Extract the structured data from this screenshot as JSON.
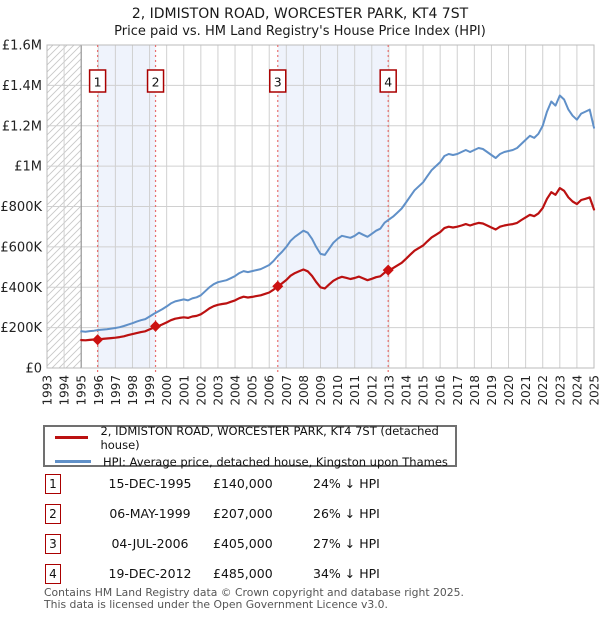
{
  "title": "2, IDMISTON ROAD, WORCESTER PARK, KT4 7ST",
  "subtitle": "Price paid vs. HM Land Registry's House Price Index (HPI)",
  "colors": {
    "property_line": "#bb1111",
    "hpi_line": "#6090c8",
    "sale_marker": "#cc1111",
    "dashed_line": "#e87070",
    "shade": "#eff3fc",
    "grid": "#d0d0d0",
    "hatch": "#c8c8c8",
    "box_border": "#aa0000",
    "axis_text": "#222222"
  },
  "chart_data": {
    "type": "line",
    "xlim": [
      1993,
      2025
    ],
    "ylim": [
      0,
      1600000
    ],
    "xticks": [
      1993,
      1994,
      1995,
      1996,
      1997,
      1998,
      1999,
      2000,
      2001,
      2002,
      2003,
      2004,
      2005,
      2006,
      2007,
      2008,
      2009,
      2010,
      2011,
      2012,
      2013,
      2014,
      2015,
      2016,
      2017,
      2018,
      2019,
      2020,
      2021,
      2022,
      2023,
      2024,
      2025
    ],
    "yticks": [
      {
        "value": 0,
        "label": "£0"
      },
      {
        "value": 200000,
        "label": "£200K"
      },
      {
        "value": 400000,
        "label": "£400K"
      },
      {
        "value": 600000,
        "label": "£600K"
      },
      {
        "value": 800000,
        "label": "£800K"
      },
      {
        "value": 1000000,
        "label": "£1M"
      },
      {
        "value": 1200000,
        "label": "£1.2M"
      },
      {
        "value": 1400000,
        "label": "£1.4M"
      },
      {
        "value": 1600000,
        "label": "£1.6M"
      }
    ],
    "x_start": 1995.0,
    "x_step": 0.25,
    "hatch_region": [
      1993,
      1995
    ],
    "shaded_spans": [
      [
        1995.96,
        1999.35
      ],
      [
        2006.5,
        2012.96
      ]
    ],
    "series": [
      {
        "name": "2, IDMISTON ROAD, WORCESTER PARK, KT4 7ST (detached house)",
        "color_key": "property_line",
        "values": [
          138000,
          137000,
          139000,
          141000,
          143000,
          144000,
          146000,
          148000,
          150000,
          153000,
          157000,
          163000,
          168000,
          173000,
          178000,
          182000,
          191000,
          200000,
          207000,
          216000,
          226000,
          237000,
          244000,
          248000,
          251000,
          248000,
          255000,
          258000,
          266000,
          280000,
          295000,
          306000,
          313000,
          317000,
          320000,
          328000,
          335000,
          346000,
          353000,
          349000,
          352000,
          356000,
          360000,
          367000,
          374000,
          388000,
          405000,
          419000,
          436000,
          457000,
          470000,
          479000,
          488000,
          479000,
          456000,
          426000,
          400000,
          394000,
          413000,
          432000,
          444000,
          452000,
          447000,
          441000,
          446000,
          453000,
          444000,
          435000,
          442000,
          450000,
          454000,
          472000,
          485000,
          495000,
          508000,
          521000,
          541000,
          561000,
          581000,
          594000,
          607000,
          627000,
          647000,
          660000,
          673000,
          693000,
          700000,
          696000,
          700000,
          706000,
          713000,
          706000,
          713000,
          719000,
          716000,
          706000,
          696000,
          686000,
          700000,
          706000,
          710000,
          713000,
          719000,
          733000,
          746000,
          759000,
          752000,
          766000,
          792000,
          838000,
          871000,
          858000,
          891000,
          878000,
          845000,
          825000,
          812000,
          832000,
          838000,
          845000,
          785000
        ]
      },
      {
        "name": "HPI: Average price, detached house, Kingston upon Thames",
        "color_key": "hpi_line",
        "values": [
          182000,
          180000,
          183000,
          185000,
          188000,
          190000,
          192000,
          195000,
          198000,
          202000,
          208000,
          215000,
          222000,
          230000,
          237000,
          242000,
          255000,
          268000,
          280000,
          292000,
          305000,
          320000,
          330000,
          335000,
          340000,
          335000,
          345000,
          350000,
          360000,
          380000,
          400000,
          415000,
          425000,
          430000,
          435000,
          445000,
          455000,
          470000,
          480000,
          475000,
          480000,
          485000,
          490000,
          500000,
          510000,
          530000,
          555000,
          575000,
          600000,
          630000,
          650000,
          665000,
          680000,
          670000,
          640000,
          600000,
          565000,
          560000,
          590000,
          620000,
          640000,
          655000,
          650000,
          645000,
          655000,
          670000,
          660000,
          650000,
          665000,
          680000,
          690000,
          720000,
          735000,
          750000,
          770000,
          790000,
          820000,
          850000,
          880000,
          900000,
          920000,
          950000,
          980000,
          1000000,
          1020000,
          1050000,
          1060000,
          1055000,
          1060000,
          1070000,
          1080000,
          1070000,
          1080000,
          1090000,
          1085000,
          1070000,
          1055000,
          1040000,
          1060000,
          1070000,
          1075000,
          1080000,
          1090000,
          1110000,
          1130000,
          1150000,
          1140000,
          1160000,
          1200000,
          1270000,
          1320000,
          1300000,
          1350000,
          1330000,
          1280000,
          1250000,
          1230000,
          1260000,
          1270000,
          1280000,
          1190000
        ]
      }
    ],
    "sales": [
      {
        "num": "1",
        "x": 1995.96,
        "value": 140000
      },
      {
        "num": "2",
        "x": 1999.35,
        "value": 207000
      },
      {
        "num": "3",
        "x": 2006.5,
        "value": 405000
      },
      {
        "num": "4",
        "x": 2012.96,
        "value": 485000
      }
    ]
  },
  "legend": [
    {
      "label": "2, IDMISTON ROAD, WORCESTER PARK, KT4 7ST (detached house)",
      "color_key": "property_line"
    },
    {
      "label": "HPI: Average price, detached house, Kingston upon Thames",
      "color_key": "hpi_line"
    }
  ],
  "table": {
    "rows": [
      {
        "num": "1",
        "date": "15-DEC-1995",
        "price": "£140,000",
        "vs_hpi": "24% ↓ HPI"
      },
      {
        "num": "2",
        "date": "06-MAY-1999",
        "price": "£207,000",
        "vs_hpi": "26% ↓ HPI"
      },
      {
        "num": "3",
        "date": "04-JUL-2006",
        "price": "£405,000",
        "vs_hpi": "27% ↓ HPI"
      },
      {
        "num": "4",
        "date": "19-DEC-2012",
        "price": "£485,000",
        "vs_hpi": "34% ↓ HPI"
      }
    ]
  },
  "footer": {
    "line1": "Contains HM Land Registry data © Crown copyright and database right 2025.",
    "line2": "This data is licensed under the Open Government Licence v3.0."
  }
}
